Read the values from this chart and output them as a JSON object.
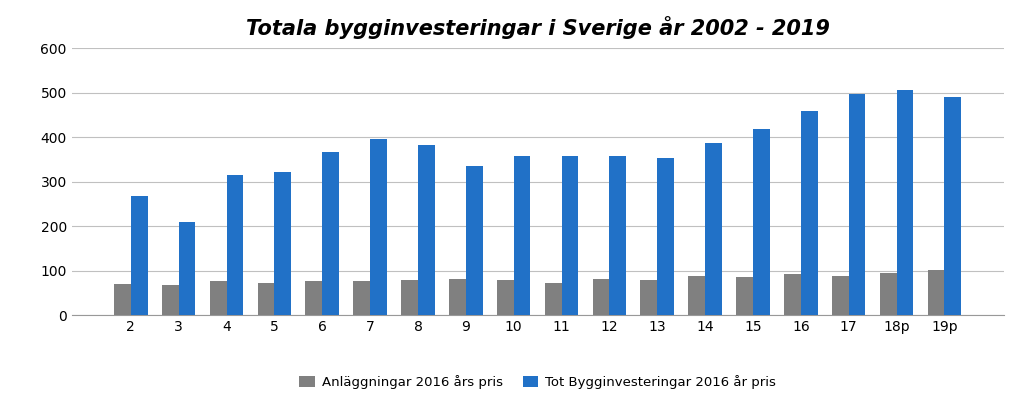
{
  "title": "Totala bygginvesteringar i Sverige år 2002 - 2019",
  "categories": [
    "2",
    "3",
    "4",
    "5",
    "6",
    "7",
    "8",
    "9",
    "10",
    "11",
    "12",
    "13",
    "14",
    "15",
    "16",
    "17",
    "18p",
    "19p"
  ],
  "anlaggningar": [
    70,
    68,
    76,
    73,
    76,
    76,
    80,
    82,
    78,
    73,
    81,
    79,
    87,
    86,
    92,
    89,
    95,
    101
  ],
  "tot_bygg": [
    268,
    210,
    315,
    322,
    368,
    397,
    383,
    335,
    357,
    358,
    358,
    354,
    387,
    419,
    459,
    498,
    506,
    491
  ],
  "anlaggningar_color": "#808080",
  "tot_bygg_color": "#2171C7",
  "anlaggningar_label": "Anläggningar 2016 års pris",
  "tot_bygg_label": "Tot Bygginvesteringar 2016 år pris",
  "ylim": [
    0,
    600
  ],
  "yticks": [
    0,
    100,
    200,
    300,
    400,
    500,
    600
  ],
  "background_color": "#ffffff",
  "grid_color": "#c0c0c0",
  "title_fontsize": 15,
  "tick_fontsize": 10,
  "legend_fontsize": 9.5,
  "bar_width": 0.35
}
